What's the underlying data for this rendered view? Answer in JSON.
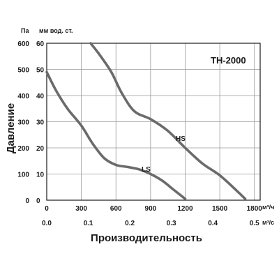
{
  "chart_data": {
    "type": "line",
    "model_label": "TH-2000",
    "ylabel": "Давление",
    "xlabel": "Производительность",
    "y_units": {
      "primary": "Па",
      "secondary": "мм вод. ст."
    },
    "x_units": {
      "primary": "м³/ч",
      "secondary": "м³/с"
    },
    "x_primary_ticks": [
      "0",
      "300",
      "600",
      "900",
      "1200",
      "1500",
      "1800"
    ],
    "x_secondary_ticks": [
      "0.0",
      "0.1",
      "0.2",
      "0.3",
      "0.4",
      "0.5"
    ],
    "y_primary_ticks": [
      "0",
      "100",
      "200",
      "300",
      "400",
      "500",
      "600"
    ],
    "y_secondary_ticks": [
      "0",
      "10",
      "20",
      "30",
      "40",
      "50",
      "60"
    ],
    "xlim": [
      0,
      1850
    ],
    "ylim": [
      0,
      600
    ],
    "grid": true,
    "series": [
      {
        "name": "LS",
        "x": [
          0,
          80,
          180,
          300,
          400,
          500,
          600,
          700,
          800,
          900,
          1000,
          1100,
          1200
        ],
        "y": [
          490,
          420,
          350,
          285,
          215,
          160,
          135,
          127,
          118,
          100,
          75,
          40,
          5
        ]
      },
      {
        "name": "HS",
        "x": [
          380,
          460,
          560,
          650,
          760,
          900,
          1050,
          1200,
          1350,
          1500,
          1650,
          1720
        ],
        "y": [
          600,
          555,
          490,
          410,
          340,
          310,
          265,
          200,
          140,
          95,
          35,
          5
        ]
      }
    ]
  }
}
